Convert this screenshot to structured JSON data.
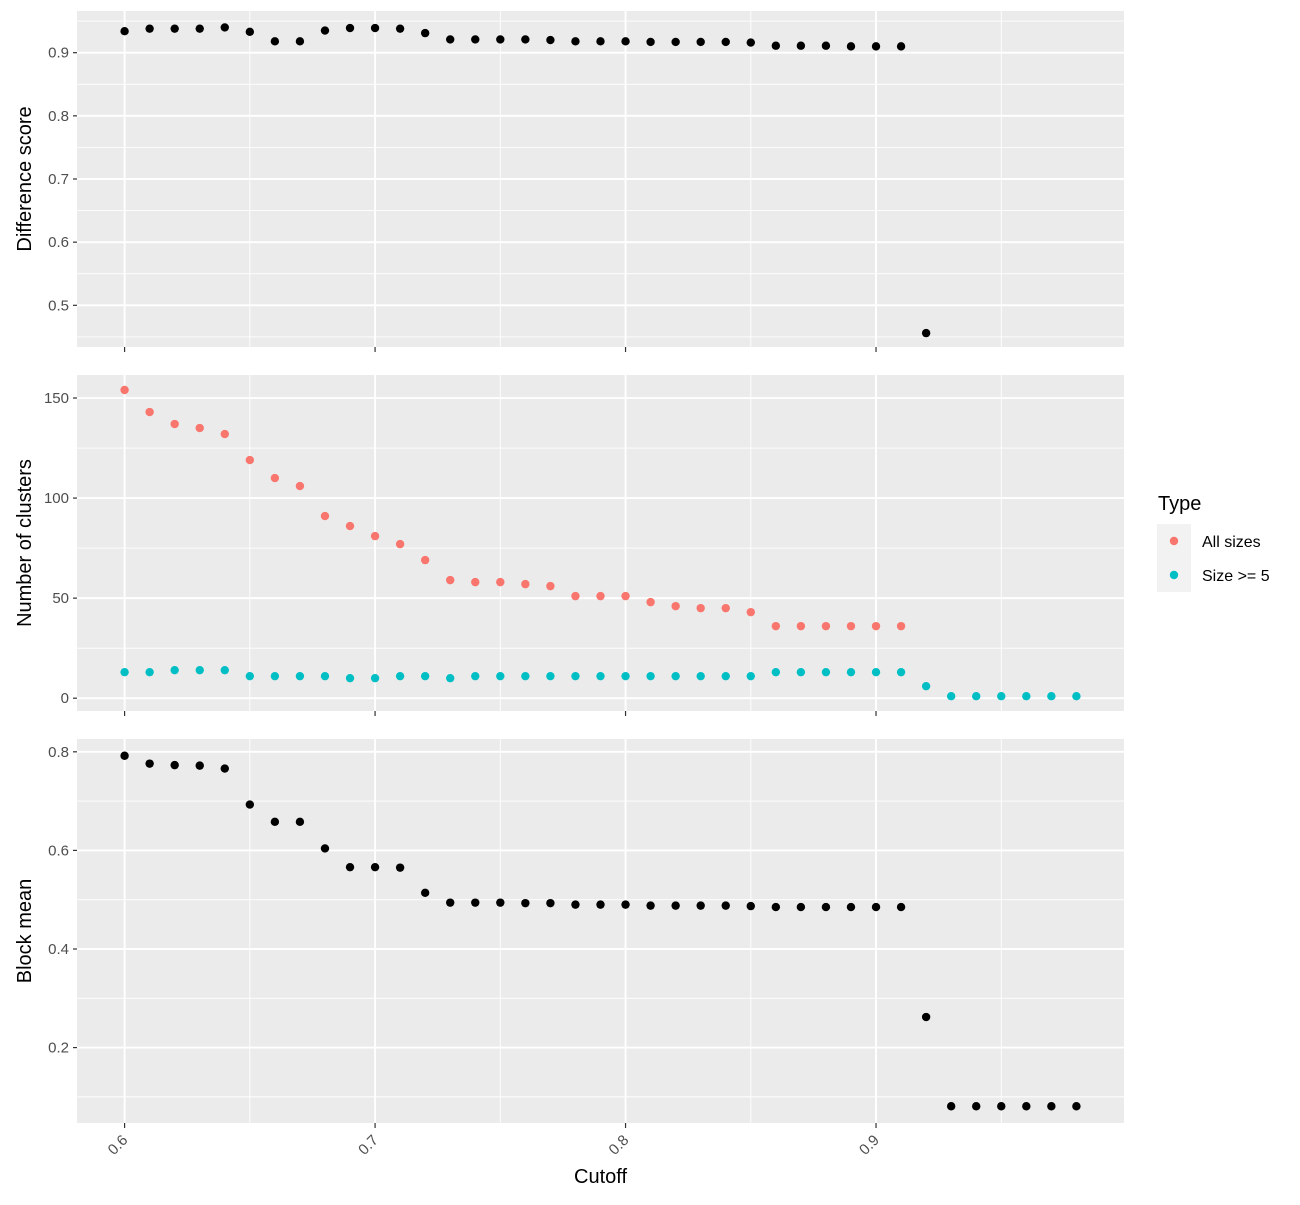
{
  "chart_data": [
    {
      "type": "scatter",
      "ylabel": "Difference score",
      "xlim": [
        0.581,
        0.999
      ],
      "ylim": [
        0.434,
        0.966
      ],
      "yticks": [
        "0.5",
        "0.6",
        "0.7",
        "0.8",
        "0.9"
      ],
      "series": [
        {
          "color": "#000000",
          "x": [
            0.6,
            0.61,
            0.62,
            0.63,
            0.64,
            0.65,
            0.66,
            0.67,
            0.68,
            0.69,
            0.7,
            0.71,
            0.72,
            0.73,
            0.74,
            0.75,
            0.76,
            0.77,
            0.78,
            0.79,
            0.8,
            0.81,
            0.82,
            0.83,
            0.84,
            0.85,
            0.86,
            0.87,
            0.88,
            0.89,
            0.9,
            0.91,
            0.92
          ],
          "y": [
            0.934,
            0.938,
            0.938,
            0.938,
            0.94,
            0.933,
            0.918,
            0.918,
            0.935,
            0.939,
            0.939,
            0.938,
            0.931,
            0.921,
            0.921,
            0.921,
            0.921,
            0.92,
            0.918,
            0.918,
            0.918,
            0.917,
            0.917,
            0.917,
            0.917,
            0.916,
            0.911,
            0.911,
            0.911,
            0.91,
            0.91,
            0.91,
            0.456
          ]
        }
      ]
    },
    {
      "type": "scatter",
      "ylabel": "Number of clusters",
      "xlim": [
        0.581,
        0.999
      ],
      "ylim": [
        -6.4,
        161.5
      ],
      "yticks": [
        "0",
        "50",
        "100",
        "150"
      ],
      "legend": {
        "title": "Type",
        "position": "right"
      },
      "series": [
        {
          "name": "All sizes",
          "color": "#F8766D",
          "x": [
            0.6,
            0.61,
            0.62,
            0.63,
            0.64,
            0.65,
            0.66,
            0.67,
            0.68,
            0.69,
            0.7,
            0.71,
            0.72,
            0.73,
            0.74,
            0.75,
            0.76,
            0.77,
            0.78,
            0.79,
            0.8,
            0.81,
            0.82,
            0.83,
            0.84,
            0.85,
            0.86,
            0.87,
            0.88,
            0.89,
            0.9,
            0.91
          ],
          "y": [
            154,
            143,
            137,
            135,
            132,
            119,
            110,
            106,
            91,
            86,
            81,
            77,
            69,
            59,
            58,
            58,
            57,
            56,
            51,
            51,
            51,
            48,
            46,
            45,
            45,
            43,
            36,
            36,
            36,
            36,
            36,
            36
          ]
        },
        {
          "name": "Size >= 5",
          "color": "#00BFC4",
          "x": [
            0.6,
            0.61,
            0.62,
            0.63,
            0.64,
            0.65,
            0.66,
            0.67,
            0.68,
            0.69,
            0.7,
            0.71,
            0.72,
            0.73,
            0.74,
            0.75,
            0.76,
            0.77,
            0.78,
            0.79,
            0.8,
            0.81,
            0.82,
            0.83,
            0.84,
            0.85,
            0.86,
            0.87,
            0.88,
            0.89,
            0.9,
            0.91,
            0.92,
            0.93,
            0.94,
            0.95,
            0.96,
            0.97,
            0.98
          ],
          "y": [
            13,
            13,
            14,
            14,
            14,
            11,
            11,
            11,
            11,
            10,
            10,
            11,
            11,
            10,
            11,
            11,
            11,
            11,
            11,
            11,
            11,
            11,
            11,
            11,
            11,
            11,
            13,
            13,
            13,
            13,
            13,
            13,
            6,
            1,
            1,
            1,
            1,
            1,
            1
          ]
        }
      ]
    },
    {
      "type": "scatter",
      "ylabel": "Block mean",
      "xlabel": "Cutoff",
      "xlim": [
        0.581,
        0.999
      ],
      "ylim": [
        0.047,
        0.826
      ],
      "yticks": [
        "0.2",
        "0.4",
        "0.6",
        "0.8"
      ],
      "xticks": [
        "0.6",
        "0.7",
        "0.8",
        "0.9"
      ],
      "series": [
        {
          "color": "#000000",
          "x": [
            0.6,
            0.61,
            0.62,
            0.63,
            0.64,
            0.65,
            0.66,
            0.67,
            0.68,
            0.69,
            0.7,
            0.71,
            0.72,
            0.73,
            0.74,
            0.75,
            0.76,
            0.77,
            0.78,
            0.79,
            0.8,
            0.81,
            0.82,
            0.83,
            0.84,
            0.85,
            0.86,
            0.87,
            0.88,
            0.89,
            0.9,
            0.91,
            0.92,
            0.93,
            0.94,
            0.95,
            0.96,
            0.97,
            0.98
          ],
          "y": [
            0.792,
            0.776,
            0.773,
            0.772,
            0.766,
            0.693,
            0.658,
            0.658,
            0.604,
            0.566,
            0.566,
            0.565,
            0.514,
            0.494,
            0.494,
            0.494,
            0.493,
            0.493,
            0.49,
            0.49,
            0.49,
            0.488,
            0.488,
            0.488,
            0.488,
            0.487,
            0.485,
            0.485,
            0.485,
            0.485,
            0.485,
            0.485,
            0.262,
            0.081,
            0.081,
            0.081,
            0.081,
            0.081,
            0.081
          ]
        }
      ]
    }
  ]
}
